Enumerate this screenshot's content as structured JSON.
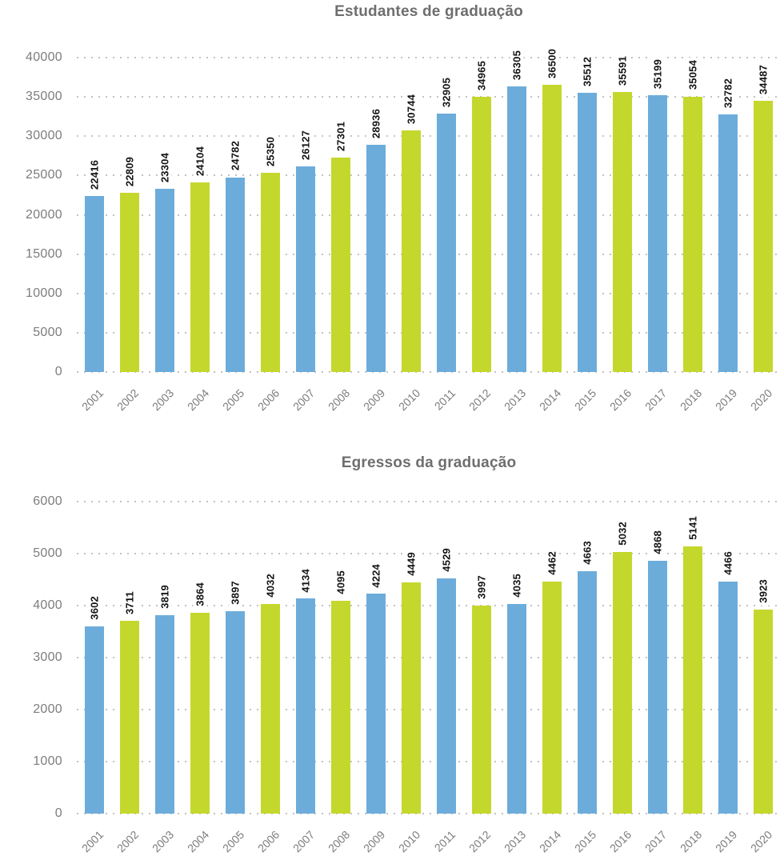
{
  "colors": {
    "bar_blue": "#6cacdb",
    "bar_green": "#c4d72d",
    "axis_text": "#7d7d7d",
    "title_text": "#6e6e6e",
    "value_label_text": "#141414",
    "gridline": "#c2c2c2",
    "background": "#ffffff"
  },
  "chart_data": [
    {
      "type": "bar",
      "title": "Estudantes de graduação",
      "categories": [
        "2001",
        "2002",
        "2003",
        "2004",
        "2005",
        "2006",
        "2007",
        "2008",
        "2009",
        "2010",
        "2011",
        "2012",
        "2013",
        "2014",
        "2015",
        "2016",
        "2017",
        "2018",
        "2019",
        "2020"
      ],
      "values": [
        22416,
        22809,
        23304,
        24104,
        24782,
        25350,
        26127,
        27301,
        28936,
        30744,
        32905,
        34965,
        36305,
        36500,
        35512,
        35591,
        35199,
        35054,
        32782,
        34487
      ],
      "xlabel": "",
      "ylabel": "",
      "ylim": [
        0,
        40000
      ],
      "ytick_step": 5000,
      "grid": "horizontal dotted",
      "legend_position": "none",
      "bar_palette_alternating": [
        "#6cacdb",
        "#c4d72d"
      ],
      "value_labels": "shown above bars, rotated 90 degrees",
      "x_tick_rotation": 45
    },
    {
      "type": "bar",
      "title": "Egressos da graduação",
      "categories": [
        "2001",
        "2002",
        "2003",
        "2004",
        "2005",
        "2006",
        "2007",
        "2008",
        "2009",
        "2010",
        "2011",
        "2012",
        "2013",
        "2014",
        "2015",
        "2016",
        "2017",
        "2018",
        "2019",
        "2020"
      ],
      "values": [
        3602,
        3711,
        3819,
        3864,
        3897,
        4032,
        4134,
        4095,
        4224,
        4449,
        4529,
        3997,
        4035,
        4462,
        4663,
        5032,
        4868,
        5141,
        4466,
        3923
      ],
      "xlabel": "",
      "ylabel": "",
      "ylim": [
        0,
        6000
      ],
      "ytick_step": 1000,
      "grid": "horizontal dotted",
      "legend_position": "none",
      "bar_palette_alternating": [
        "#6cacdb",
        "#c4d72d"
      ],
      "value_labels": "shown above bars, rotated 90 degrees",
      "x_tick_rotation": 45
    }
  ]
}
